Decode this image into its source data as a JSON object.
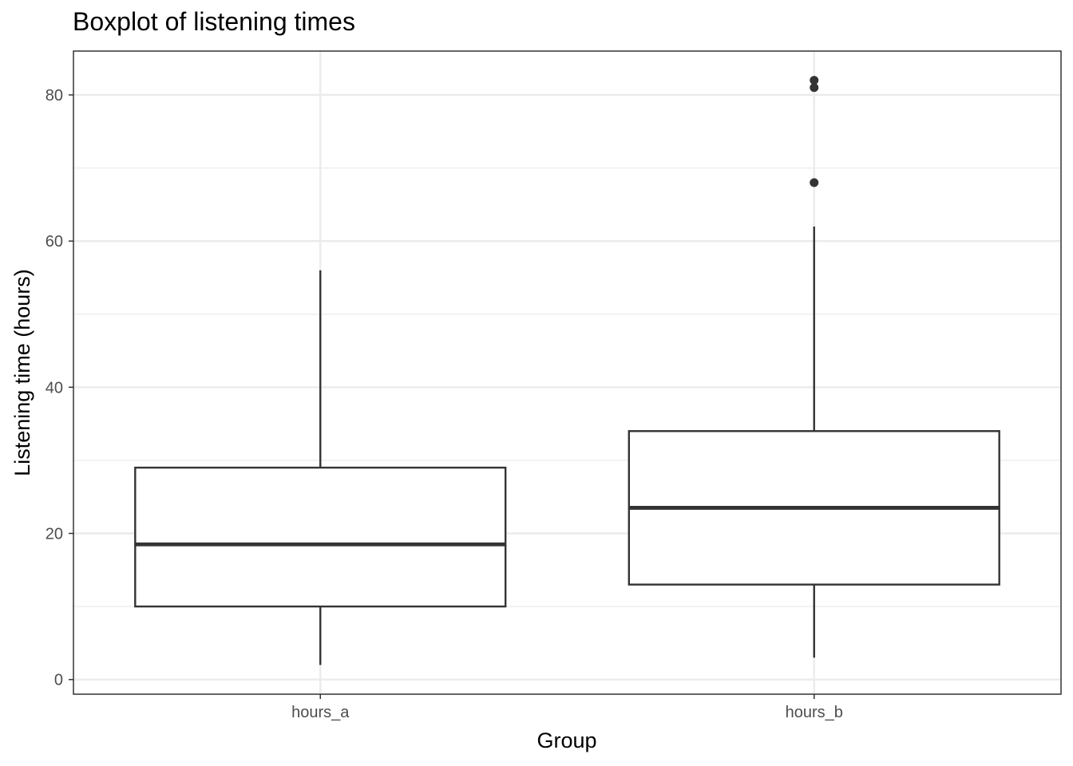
{
  "chart_data": {
    "type": "boxplot",
    "title": "Boxplot of listening times",
    "xlabel": "Group",
    "ylabel": "Listening time (hours)",
    "categories": [
      "hours_a",
      "hours_b"
    ],
    "ylim": [
      -2,
      86
    ],
    "yticks": [
      0,
      20,
      40,
      60,
      80
    ],
    "grid": true,
    "boxes": [
      {
        "category": "hours_a",
        "whisker_low": 2,
        "q1": 10,
        "median": 18.5,
        "q3": 29,
        "whisker_high": 56,
        "outliers": []
      },
      {
        "category": "hours_b",
        "whisker_low": 3,
        "q1": 13,
        "median": 23.5,
        "q3": 34,
        "whisker_high": 62,
        "outliers": [
          68,
          81,
          82
        ]
      }
    ],
    "colors": {
      "panel_border": "#333333",
      "grid": "#ebebeb",
      "box_line": "#333333",
      "outlier": "#333333"
    }
  }
}
